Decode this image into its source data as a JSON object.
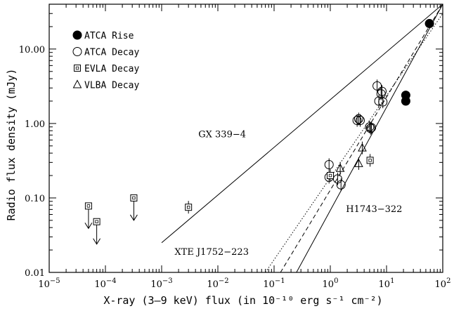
{
  "chart_data": {
    "type": "scatter",
    "xlabel": "X-ray (3–9 keV) flux (in 10⁻¹⁰ erg s⁻¹ cm⁻²)",
    "ylabel": "Radio flux density (mJy)",
    "xscale": "log",
    "yscale": "log",
    "xlim": [
      1e-05,
      100
    ],
    "ylim": [
      0.01,
      40
    ],
    "x_ticks": [
      {
        "value": 1e-05,
        "base": "10",
        "exp": "−5"
      },
      {
        "value": 0.0001,
        "base": "10",
        "exp": "−4"
      },
      {
        "value": 0.001,
        "base": "10",
        "exp": "−3"
      },
      {
        "value": 0.01,
        "base": "10",
        "exp": "−2"
      },
      {
        "value": 0.1,
        "base": "10",
        "exp": "−1"
      },
      {
        "value": 1,
        "base": "10",
        "exp": "0"
      },
      {
        "value": 10,
        "base": "10",
        "exp": "1"
      },
      {
        "value": 100,
        "base": "10",
        "exp": "2"
      }
    ],
    "y_ticks": [
      {
        "value": 0.01,
        "label": "0.01"
      },
      {
        "value": 0.1,
        "label": "0.10"
      },
      {
        "value": 1,
        "label": "1.00"
      },
      {
        "value": 10,
        "label": "10.00"
      }
    ],
    "legend_position": "top-left",
    "series": [
      {
        "name": "ATCA Rise",
        "marker": "filled-circle",
        "points": [
          [
            58,
            22
          ],
          [
            22,
            2.4
          ],
          [
            22,
            2.0
          ]
        ]
      },
      {
        "name": "ATCA Decay",
        "marker": "open-circle",
        "points": [
          [
            0.95,
            0.28
          ],
          [
            0.95,
            0.19
          ],
          [
            1.35,
            0.18
          ],
          [
            1.55,
            0.15
          ],
          [
            3.2,
            1.15
          ],
          [
            3.4,
            1.1
          ],
          [
            3.0,
            1.1
          ],
          [
            5.0,
            0.9
          ],
          [
            5.4,
            0.88
          ],
          [
            5.2,
            0.86
          ],
          [
            6.8,
            3.2
          ],
          [
            7.3,
            2.0
          ],
          [
            8.0,
            2.5
          ],
          [
            8.3,
            2.7
          ],
          [
            8.6,
            1.95
          ]
        ]
      },
      {
        "name": "EVLA Decay",
        "marker": "open-square",
        "points": [
          {
            "x": 5e-05,
            "y": 0.078,
            "upper_limit": true
          },
          {
            "x": 7e-05,
            "y": 0.048,
            "upper_limit": true
          },
          {
            "x": 0.00032,
            "y": 0.1,
            "upper_limit": true
          },
          {
            "x": 0.003,
            "y": 0.075,
            "upper_limit": false
          },
          {
            "x": 1.0,
            "y": 0.2,
            "upper_limit": false
          },
          {
            "x": 5.1,
            "y": 0.32,
            "upper_limit": false
          }
        ]
      },
      {
        "name": "VLBA Decay",
        "marker": "open-triangle",
        "points": [
          [
            1.5,
            0.25
          ],
          [
            3.2,
            0.29
          ],
          [
            3.7,
            0.47
          ]
        ]
      }
    ],
    "lines": [
      {
        "label": "GX 339−4",
        "style": "solid",
        "from": [
          0.001,
          0.025
        ],
        "to": [
          100,
          40
        ]
      },
      {
        "label": "H1743−322",
        "style": "solid",
        "from": [
          0.25,
          0.01
        ],
        "to": [
          100,
          40
        ]
      },
      {
        "label": "XTE J1752−223",
        "style": "dashed",
        "from": [
          0.13,
          0.01
        ],
        "to": [
          100,
          40
        ]
      },
      {
        "label": "",
        "style": "dotted",
        "from": [
          0.07,
          0.01
        ],
        "to": [
          100,
          30
        ]
      }
    ],
    "annotations": [
      {
        "text": "GX 339−4",
        "x": 0.0045,
        "y": 0.65
      },
      {
        "text": "H1743−322",
        "x": 1.9,
        "y": 0.065
      },
      {
        "text": "XTE J1752−223",
        "x": 0.0017,
        "y": 0.0173
      }
    ]
  }
}
